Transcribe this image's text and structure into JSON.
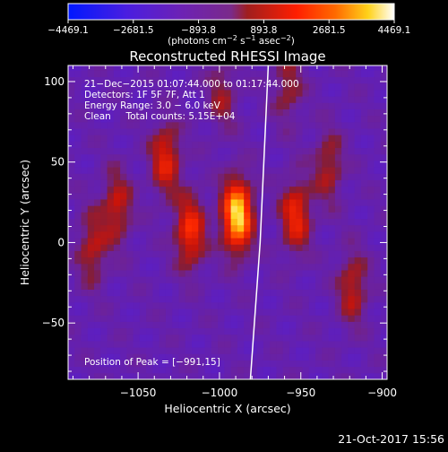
{
  "chart_data": {
    "type": "heatmap",
    "title": "Reconstructed RHESSI Image",
    "xlabel": "Heliocentric X (arcsec)",
    "ylabel": "Heliocentric Y (arcsec)",
    "xlim": [
      -1093,
      -897
    ],
    "ylim": [
      -85,
      110
    ],
    "x_ticks": [
      -1050,
      -1000,
      -950,
      -900
    ],
    "x_tick_labels": [
      "−1050",
      "−1000",
      "−950",
      "−900"
    ],
    "y_ticks": [
      -50,
      0,
      50,
      100
    ],
    "y_tick_labels": [
      "−50",
      "0",
      "50",
      "100"
    ],
    "colorbar": {
      "colors": [
        "#0018ff",
        "#6d22b4",
        "#7a2a8a",
        "#a01e1e",
        "#ff1e00",
        "#ff6a00",
        "#ffd21a",
        "#ffffff"
      ],
      "ticks": [
        -4469.1,
        -2681.5,
        -893.8,
        893.8,
        2681.5,
        4469.1
      ],
      "tick_labels": [
        "−4469.1",
        "−2681.5",
        "−893.8",
        "893.8",
        "2681.5",
        "4469.1"
      ],
      "unit_prefix": "(photons cm",
      "unit_e1": "−2",
      "unit_mid": " s",
      "unit_e2": "−1",
      "unit_mid2": " asec",
      "unit_e3": "−2",
      "unit_suffix": ")"
    },
    "annotations": {
      "line1": "21−Dec−2015 01:07:44.000 to 01:17:44.000",
      "line2": "Detectors: 1F 5F 7F, Att 1",
      "line3": "Energy Range: 3.0 − 6.0 keV",
      "line4": "Clean     Total counts: 5.15E+04",
      "peak": "Position of Peak = [−991,15]"
    },
    "peak": [
      -991,
      15
    ],
    "limb_line": [
      [
        -970,
        110
      ],
      [
        -975,
        0
      ],
      [
        -981,
        -85
      ]
    ],
    "features": [
      {
        "x": -991,
        "y": 15,
        "value": 4469.1
      },
      {
        "x": -1020,
        "y": 5,
        "value": 2600
      },
      {
        "x": -1035,
        "y": 50,
        "value": 2200
      },
      {
        "x": -1065,
        "y": 20,
        "value": 1800
      },
      {
        "x": -1080,
        "y": -5,
        "value": 1600
      },
      {
        "x": -955,
        "y": 15,
        "value": 2400
      },
      {
        "x": -935,
        "y": 45,
        "value": 1500
      },
      {
        "x": -920,
        "y": -30,
        "value": 1700
      },
      {
        "x": -1000,
        "y": 90,
        "value": 1200
      },
      {
        "x": -960,
        "y": 95,
        "value": 1300
      }
    ]
  },
  "footer": {
    "timestamp": "21-Oct-2017 15:56"
  }
}
